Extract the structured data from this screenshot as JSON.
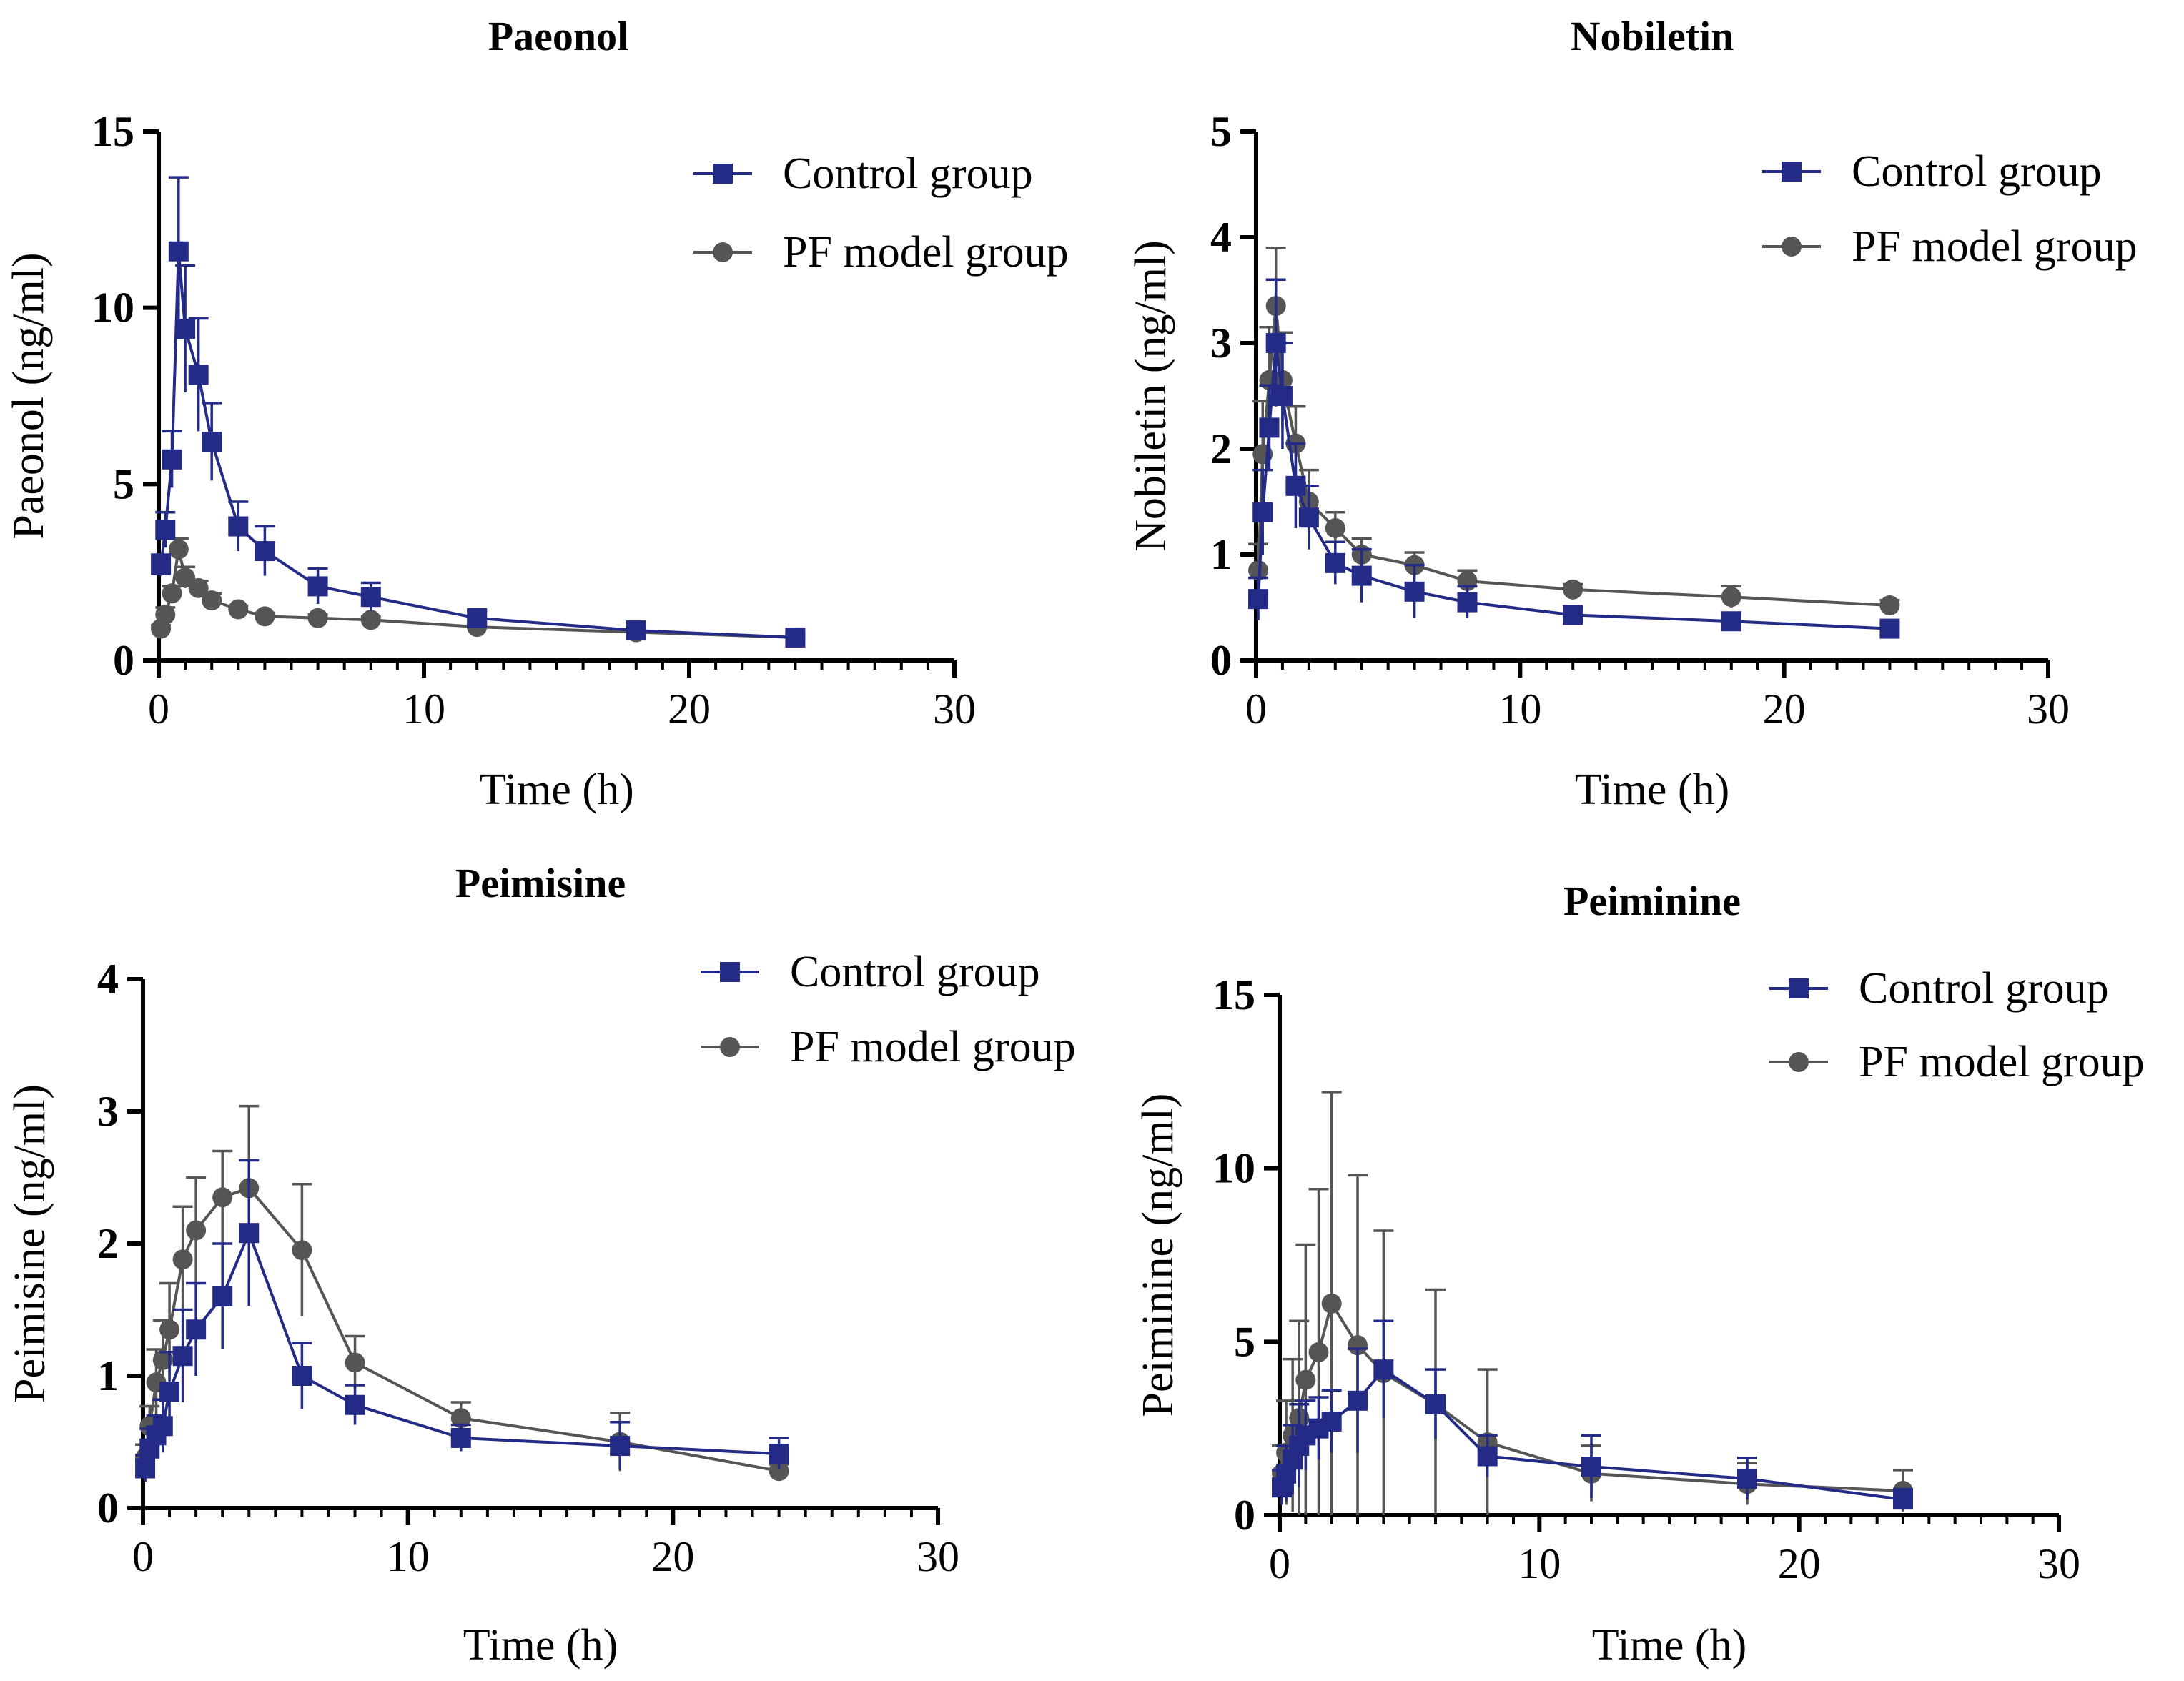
{
  "colors": {
    "control": "#232b86",
    "pf_model": "#555555",
    "axis": "#000000"
  },
  "chart_data": [
    {
      "type": "line",
      "title": "Paeonol",
      "xlabel": "Time (h)",
      "ylabel": "Paeonol (ng/ml)",
      "xlim": [
        0,
        30
      ],
      "ylim": [
        0,
        15
      ],
      "xticks": [
        0,
        10,
        20,
        30
      ],
      "xtick_labels": [
        "0",
        "10",
        "20",
        "30"
      ],
      "yticks": [
        0,
        5,
        10,
        15
      ],
      "ytick_labels": [
        "0",
        "5",
        "10",
        "15"
      ],
      "legend": "top-right",
      "series": [
        {
          "name": "Control group",
          "marker": "square",
          "x": [
            0.083,
            0.25,
            0.5,
            0.75,
            1,
            1.5,
            2,
            3,
            4,
            6,
            8,
            12,
            18,
            24
          ],
          "values": [
            2.7,
            3.7,
            5.7,
            11.6,
            9.4,
            8.1,
            6.2,
            3.8,
            3.1,
            2.1,
            1.8,
            1.2,
            0.85,
            0.65
          ],
          "errors": [
            0.3,
            0.5,
            0.8,
            2.1,
            1.8,
            1.6,
            1.1,
            0.7,
            0.7,
            0.5,
            0.4,
            0.2,
            0.1,
            0.1
          ]
        },
        {
          "name": "PF model group",
          "marker": "circle",
          "x": [
            0.083,
            0.25,
            0.5,
            0.75,
            1,
            1.5,
            2,
            3,
            4,
            6,
            8,
            12,
            18,
            24
          ],
          "values": [
            0.9,
            1.3,
            1.9,
            3.15,
            2.35,
            2.05,
            1.7,
            1.45,
            1.25,
            1.2,
            1.15,
            0.95,
            0.8,
            0.65
          ],
          "errors": [
            0.1,
            0.2,
            0.2,
            0.3,
            0.3,
            0.2,
            0.2,
            0.1,
            0.1,
            0.1,
            0.1,
            0.1,
            0.1,
            0.1
          ]
        }
      ]
    },
    {
      "type": "line",
      "title": "Nobiletin",
      "xlabel": "Time (h)",
      "ylabel": "Nobiletin (ng/ml)",
      "xlim": [
        0,
        30
      ],
      "ylim": [
        0,
        5
      ],
      "xticks": [
        0,
        10,
        20,
        30
      ],
      "xtick_labels": [
        "0",
        "10",
        "20",
        "30"
      ],
      "yticks": [
        0,
        1,
        2,
        3,
        4,
        5
      ],
      "ytick_labels": [
        "0",
        "1",
        "2",
        "3",
        "4",
        "5"
      ],
      "legend": "top-right",
      "series": [
        {
          "name": "Control group",
          "marker": "square",
          "x": [
            0.083,
            0.25,
            0.5,
            0.75,
            1,
            1.5,
            2,
            3,
            4,
            6,
            8,
            12,
            18,
            24
          ],
          "values": [
            0.58,
            1.4,
            2.2,
            3.0,
            2.5,
            1.65,
            1.35,
            0.92,
            0.8,
            0.65,
            0.55,
            0.43,
            0.37,
            0.3
          ],
          "errors": [
            0.2,
            0.4,
            0.4,
            0.6,
            0.5,
            0.4,
            0.3,
            0.2,
            0.25,
            0.25,
            0.15,
            0.08,
            0.08,
            0.05
          ]
        },
        {
          "name": "PF model group",
          "marker": "circle",
          "x": [
            0.083,
            0.25,
            0.5,
            0.75,
            1,
            1.5,
            2,
            3,
            4,
            6,
            8,
            12,
            18,
            24
          ],
          "values": [
            0.85,
            1.95,
            2.65,
            3.35,
            2.65,
            2.05,
            1.5,
            1.25,
            1.0,
            0.9,
            0.75,
            0.67,
            0.6,
            0.52
          ],
          "errors": [
            0.25,
            0.5,
            0.5,
            0.55,
            0.45,
            0.35,
            0.3,
            0.15,
            0.15,
            0.12,
            0.1,
            0.05,
            0.1,
            0.05
          ]
        }
      ]
    },
    {
      "type": "line",
      "title": "Peimisine",
      "xlabel": "Time (h)",
      "ylabel": "Peimisine (ng/ml)",
      "xlim": [
        0,
        30
      ],
      "ylim": [
        0,
        4
      ],
      "xticks": [
        0,
        10,
        20,
        30
      ],
      "xtick_labels": [
        "0",
        "10",
        "20",
        "30"
      ],
      "yticks": [
        0,
        1,
        2,
        3,
        4
      ],
      "ytick_labels": [
        "0",
        "1",
        "2",
        "3",
        "4"
      ],
      "legend": "top-right",
      "series": [
        {
          "name": "Control group",
          "marker": "square",
          "x": [
            0.083,
            0.25,
            0.5,
            0.75,
            1,
            1.5,
            2,
            3,
            4,
            6,
            8,
            12,
            18,
            24
          ],
          "values": [
            0.3,
            0.45,
            0.55,
            0.62,
            0.88,
            1.15,
            1.35,
            1.6,
            2.08,
            1.0,
            0.78,
            0.53,
            0.47,
            0.41
          ],
          "errors": [
            0.1,
            0.15,
            0.15,
            0.2,
            0.3,
            0.35,
            0.35,
            0.4,
            0.55,
            0.25,
            0.15,
            0.1,
            0.18,
            0.12
          ]
        },
        {
          "name": "PF model group",
          "marker": "circle",
          "x": [
            0.083,
            0.25,
            0.5,
            0.75,
            1,
            1.5,
            2,
            3,
            4,
            6,
            8,
            12,
            18,
            24
          ],
          "values": [
            0.38,
            0.62,
            0.95,
            1.12,
            1.35,
            1.88,
            2.1,
            2.35,
            2.42,
            1.95,
            1.1,
            0.68,
            0.5,
            0.28
          ],
          "errors": [
            0.1,
            0.15,
            0.25,
            0.3,
            0.35,
            0.4,
            0.4,
            0.35,
            0.62,
            0.5,
            0.2,
            0.12,
            0.22,
            0.05
          ]
        }
      ]
    },
    {
      "type": "line",
      "title": "Peiminine",
      "xlabel": "Time (h)",
      "ylabel": "Peiminine (ng/ml)",
      "xlim": [
        0,
        30
      ],
      "ylim": [
        0,
        15
      ],
      "xticks": [
        0,
        10,
        20,
        30
      ],
      "xtick_labels": [
        "0",
        "10",
        "20",
        "30"
      ],
      "yticks": [
        0,
        5,
        10,
        15
      ],
      "ytick_labels": [
        "0",
        "5",
        "10",
        "15"
      ],
      "legend": "top-right",
      "series": [
        {
          "name": "Control group",
          "marker": "square",
          "x": [
            0.083,
            0.25,
            0.5,
            0.75,
            1,
            1.5,
            2,
            3,
            4,
            6,
            8,
            12,
            18,
            24
          ],
          "values": [
            0.8,
            1.2,
            1.6,
            2.0,
            2.3,
            2.5,
            2.7,
            3.3,
            4.2,
            3.2,
            1.7,
            1.4,
            1.05,
            0.45
          ],
          "errors": [
            0.5,
            0.8,
            1.0,
            1.2,
            1.0,
            0.9,
            0.9,
            1.5,
            1.4,
            1.0,
            0.6,
            0.9,
            0.6,
            0.3
          ]
        },
        {
          "name": "PF model group",
          "marker": "circle",
          "x": [
            0.083,
            0.25,
            0.5,
            0.75,
            1,
            1.5,
            2,
            3,
            4,
            6,
            8,
            12,
            18,
            24
          ],
          "values": [
            1.2,
            1.8,
            2.3,
            2.8,
            3.9,
            4.7,
            6.1,
            4.9,
            4.1,
            3.2,
            2.1,
            1.2,
            0.9,
            0.7
          ],
          "errors": [
            0.8,
            1.5,
            2.2,
            2.8,
            3.9,
            4.7,
            6.1,
            4.9,
            4.1,
            3.3,
            2.1,
            0.8,
            0.6,
            0.6
          ]
        }
      ]
    }
  ]
}
